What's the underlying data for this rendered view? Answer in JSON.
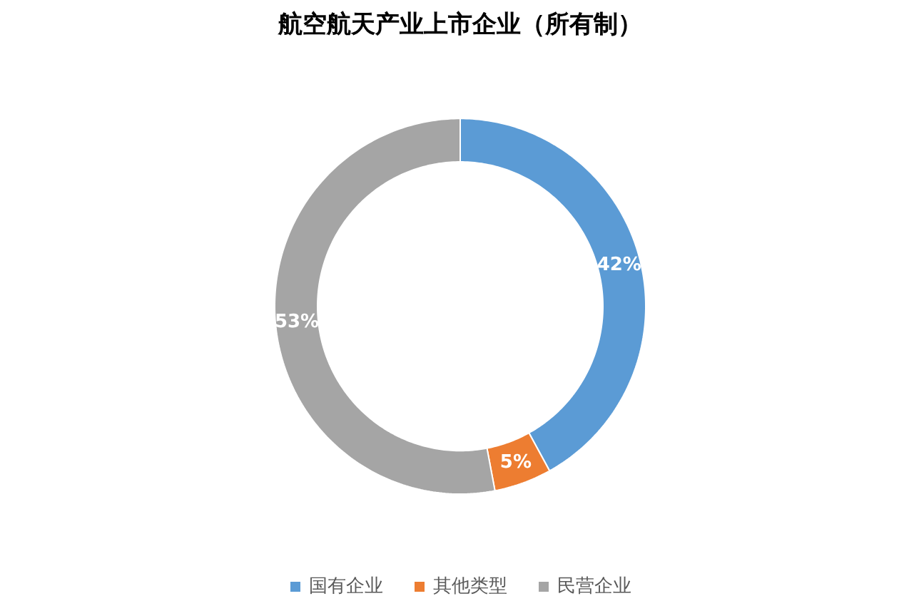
{
  "chart_data": {
    "type": "donut",
    "title": "航空航天产业上市企业（所有制）",
    "categories": [
      "国有企业",
      "其他类型",
      "民营企业"
    ],
    "values": [
      42,
      5,
      53
    ],
    "colors": [
      "#5b9bd5",
      "#ed7d31",
      "#a5a5a5"
    ],
    "value_labels": [
      "42%",
      "5%",
      "53%"
    ],
    "legend": "bottom"
  }
}
